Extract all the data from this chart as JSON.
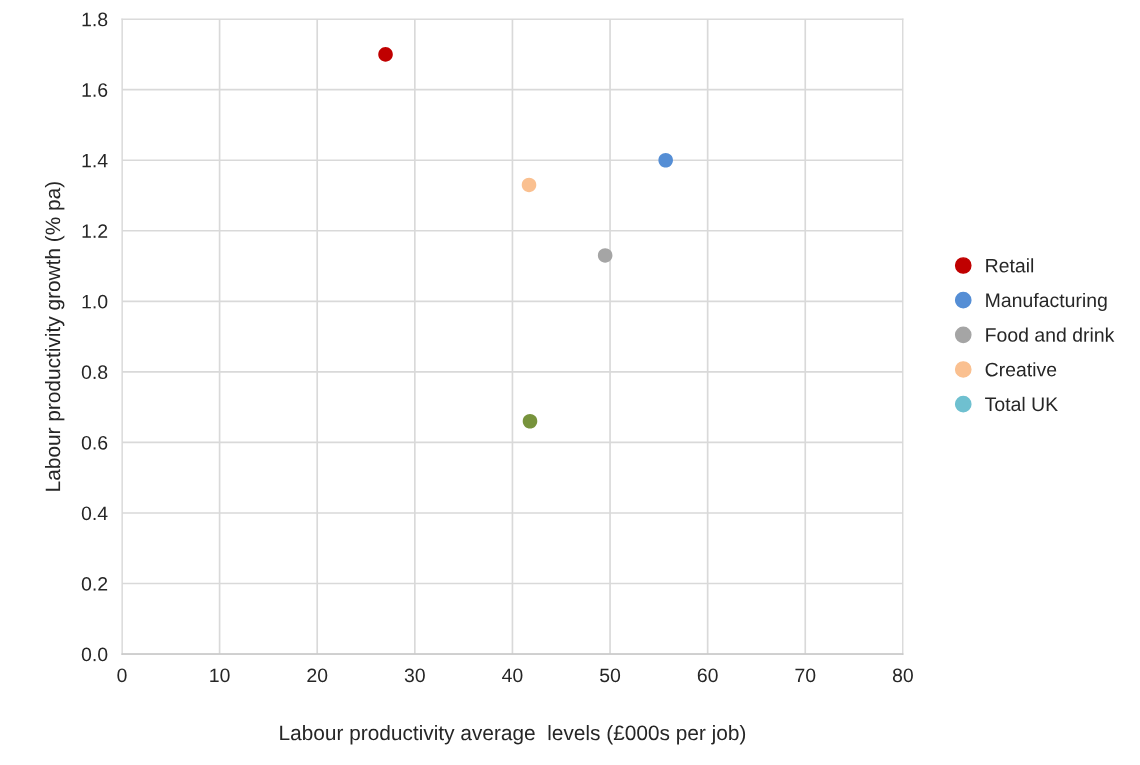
{
  "chart_data": {
    "type": "scatter",
    "xlabel": "Labour productivity average  levels (£000s per job)",
    "ylabel": "Labour productivity growth (% pa)",
    "series": [
      {
        "name": "Retail",
        "color": "#c00000",
        "x": [
          27
        ],
        "values": [
          1.7
        ]
      },
      {
        "name": "Manufacturing",
        "color": "#558ed5",
        "x": [
          55.7
        ],
        "values": [
          1.4
        ]
      },
      {
        "name": "Food and drink",
        "color": "#a5a5a5",
        "x": [
          49.5
        ],
        "values": [
          1.13
        ]
      },
      {
        "name": "Creative",
        "color": "#fac090",
        "x": [
          41.7
        ],
        "values": [
          1.33
        ]
      },
      {
        "name": "Total UK",
        "color": "#6fc0d0",
        "x": [
          null
        ],
        "values": [
          null
        ]
      },
      {
        "color": "#77933c",
        "x": [
          41.8
        ],
        "values": [
          0.66
        ]
      }
    ],
    "xlim": [
      0,
      80
    ],
    "xticks": [
      0,
      10,
      20,
      30,
      40,
      50,
      60,
      70,
      80
    ],
    "ylim": [
      0,
      1.8
    ],
    "yticks": [
      {
        "value": 0,
        "label": "0.0"
      },
      {
        "value": 0.2,
        "label": "0.2"
      },
      {
        "value": 0.4,
        "label": "0.4"
      },
      {
        "value": 0.6,
        "label": "0.6"
      },
      {
        "value": 0.8,
        "label": "0.8"
      },
      {
        "value": 1.0,
        "label": "1.0"
      },
      {
        "value": 1.2,
        "label": "1.2"
      },
      {
        "value": 1.4,
        "label": "1.4"
      },
      {
        "value": 1.6,
        "label": "1.6"
      },
      {
        "value": 1.8,
        "label": "1.8"
      }
    ],
    "grid": true,
    "legend": "right",
    "marker": "circle"
  }
}
